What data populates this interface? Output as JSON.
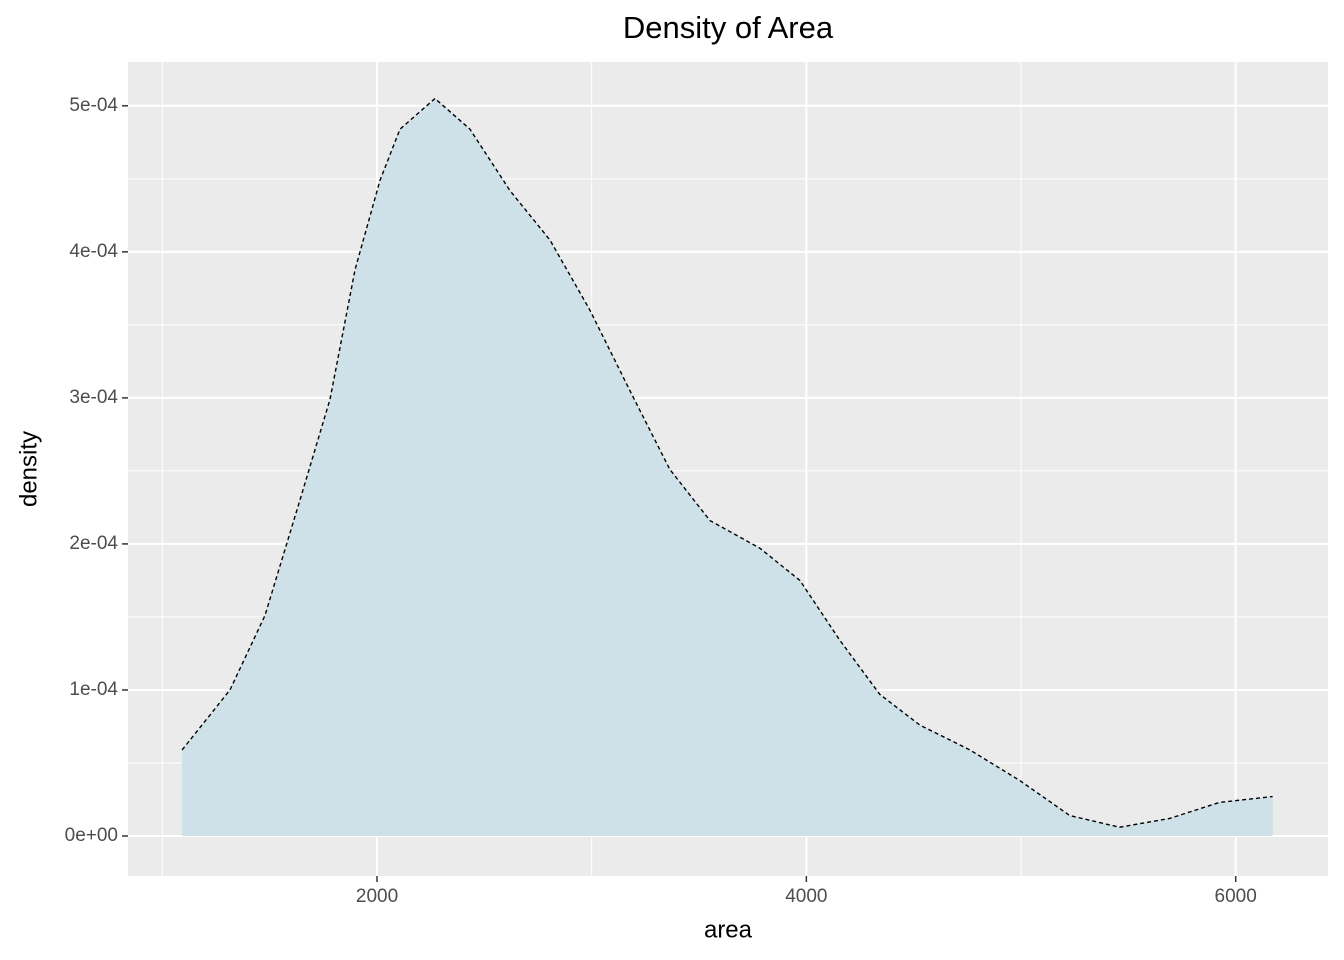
{
  "chart_data": {
    "type": "density",
    "title": "Density of Area",
    "x_label": "area",
    "y_label": "density",
    "x": [
      1092,
      1315,
      1478,
      1641,
      1781,
      1898,
      2014,
      2107,
      2270,
      2433,
      2619,
      2806,
      2992,
      3178,
      3364,
      3551,
      3784,
      3970,
      4156,
      4342,
      4528,
      4761,
      4994,
      5227,
      5459,
      5692,
      5925,
      6172
    ],
    "values": [
      5.89e-05,
      0.0001,
      0.000151,
      0.00023,
      0.000299,
      0.000388,
      0.000449,
      0.000484,
      0.000505,
      0.000484,
      0.000442,
      0.000408,
      0.00036,
      0.000305,
      0.000251,
      0.000216,
      0.000197,
      0.000175,
      0.000134,
      9.7e-05,
      7.6e-05,
      5.9e-05,
      3.8e-05,
      1.4e-05,
      6e-06,
      1.2e-05,
      2.3e-05,
      2.7e-05
    ],
    "fill_color": "#cee1e8",
    "line_color": "#000000",
    "line_style": "dashed",
    "xlim": [
      840,
      6430
    ],
    "ylim": [
      -2.74e-05,
      0.00053
    ],
    "xticks": [
      2000,
      4000,
      6000
    ],
    "yticks": [
      {
        "value": 0,
        "label": "0e+00"
      },
      {
        "value": 0.0001,
        "label": "1e-04"
      },
      {
        "value": 0.0002,
        "label": "2e-04"
      },
      {
        "value": 0.0003,
        "label": "3e-04"
      },
      {
        "value": 0.0004,
        "label": "4e-04"
      },
      {
        "value": 0.0005,
        "label": "5e-04"
      }
    ],
    "x_minor_grid": [
      1000,
      3000,
      5000
    ],
    "y_minor_grid": [
      5e-05,
      0.00015,
      0.00025,
      0.00035,
      0.00045
    ],
    "grid": true
  }
}
